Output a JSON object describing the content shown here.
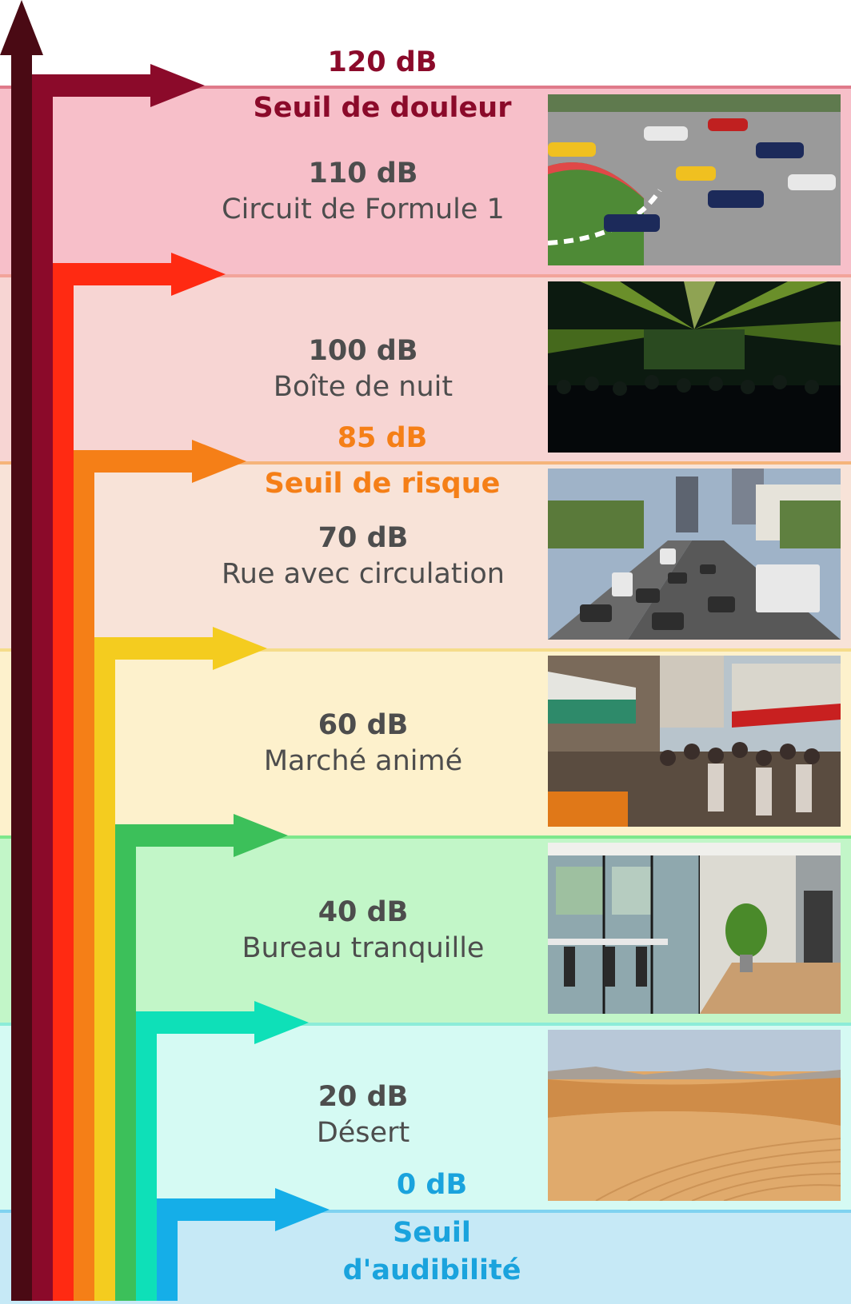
{
  "levels": [
    {
      "db": "110 dB",
      "label": "Circuit de Formule 1",
      "image": "formula-1-race-photo"
    },
    {
      "db": "100 dB",
      "label": "Boîte de nuit",
      "image": "nightclub-concert-photo"
    },
    {
      "db": "70 dB",
      "label": "Rue avec circulation",
      "image": "street-traffic-photo"
    },
    {
      "db": "60 dB",
      "label": "Marché animé",
      "image": "busy-market-photo"
    },
    {
      "db": "40 dB",
      "label": "Bureau tranquille",
      "image": "quiet-office-photo"
    },
    {
      "db": "20 dB",
      "label": "Désert",
      "image": "desert-dunes-photo"
    }
  ],
  "thresholds": {
    "pain": {
      "db": "120 dB",
      "label": "Seuil de douleur",
      "color": "#8b0a2a"
    },
    "risk": {
      "db": "85 dB",
      "label": "Seuil de risque",
      "color": "#f57f17"
    },
    "hearing": {
      "db": "0 dB",
      "label_line1": "Seuil",
      "label_line2": "d'audibilité",
      "color": "#1aa3dd"
    }
  },
  "colors": {
    "arrow_main": "#4a0a14",
    "arrow_pain": "#8b0a2a",
    "arrow_red": "#ff2a12",
    "arrow_orange": "#f57f17",
    "arrow_yellow": "#f4cc1f",
    "arrow_green": "#3cc05a",
    "arrow_teal": "#0ee0b8",
    "arrow_blue": "#15aee8"
  }
}
